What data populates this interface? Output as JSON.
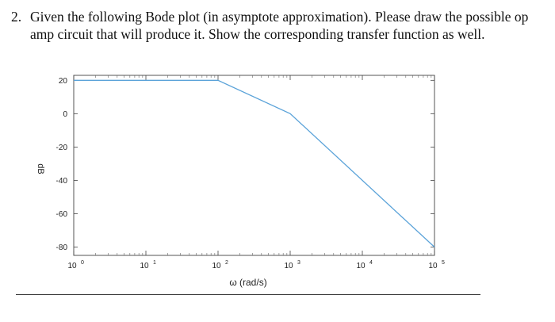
{
  "question": {
    "number": "2.",
    "line1": "Given the following Bode plot (in asymptote approximation). Please draw the possible op",
    "line2": "amp circuit that will produce it. Show the corresponding transfer function as well."
  },
  "chart_data": {
    "type": "line",
    "xscale": "log",
    "xlim": [
      1,
      100000
    ],
    "ylim": [
      -85,
      23
    ],
    "xlabel": "ω (rad/s)",
    "ylabel": "dB",
    "y_ticks": [
      20,
      0,
      -20,
      -40,
      -60,
      -80
    ],
    "x_ticks": [
      {
        "value": 1,
        "base": "10",
        "exp": "0"
      },
      {
        "value": 10,
        "base": "10",
        "exp": "1"
      },
      {
        "value": 100,
        "base": "10",
        "exp": "2"
      },
      {
        "value": 1000,
        "base": "10",
        "exp": "3"
      },
      {
        "value": 10000,
        "base": "10",
        "exp": "4"
      },
      {
        "value": 100000,
        "base": "10",
        "exp": "5"
      }
    ],
    "series": [
      {
        "x": [
          1,
          100,
          1000,
          100000
        ],
        "y": [
          20,
          20,
          0,
          -80
        ],
        "color": "#5ba3d9"
      }
    ],
    "grid": false
  }
}
